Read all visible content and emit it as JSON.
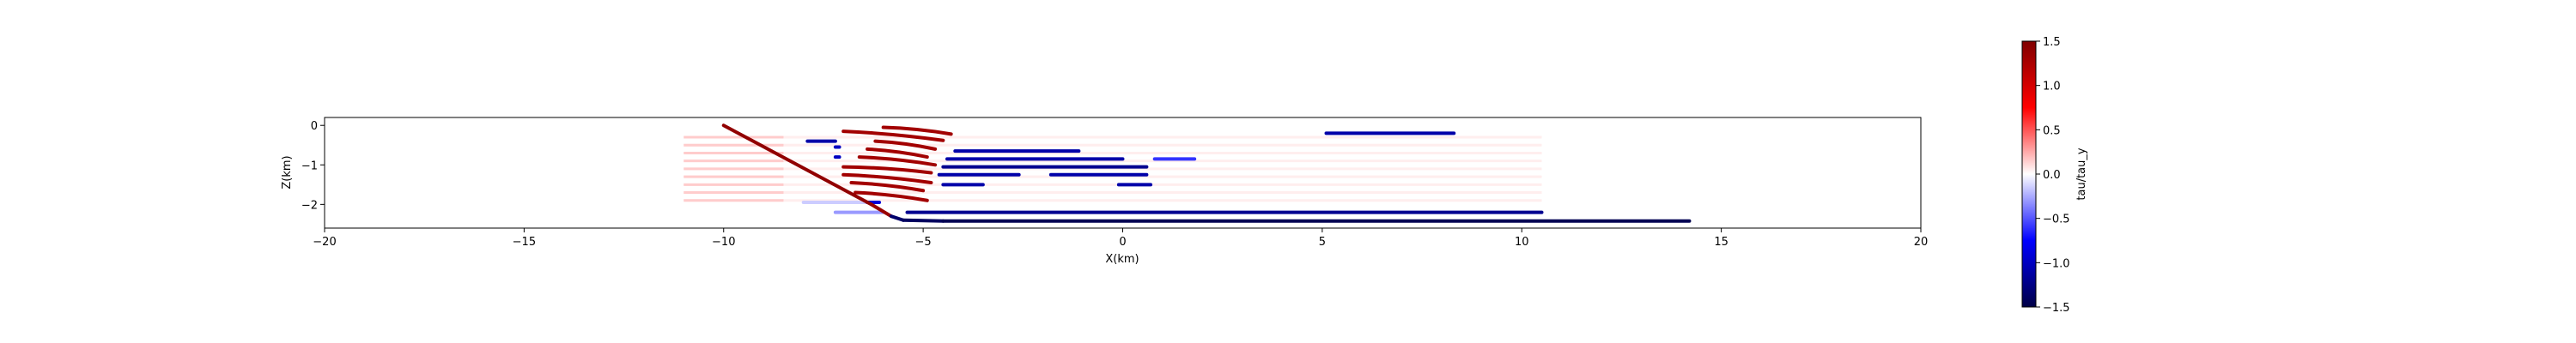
{
  "chart_data": {
    "type": "line",
    "title": "",
    "xlabel": "X(km)",
    "ylabel": "Z(km)",
    "xlim": [
      -20,
      20
    ],
    "ylim": [
      -2.6,
      0.2
    ],
    "x_ticks": [
      -20,
      -15,
      -10,
      -5,
      0,
      5,
      10,
      15,
      20
    ],
    "y_ticks": [
      0,
      -1,
      -2
    ],
    "grid": false,
    "colorbar": {
      "label": "tau/tau_y",
      "range": [
        -1.5,
        1.5
      ],
      "ticks": [
        1.5,
        1.0,
        0.5,
        0.0,
        -0.5,
        -1.0,
        -1.5
      ],
      "colormap": "seismic",
      "colors": [
        "#000046",
        "#0000ff",
        "#ffffff",
        "#ff0000",
        "#800000"
      ]
    },
    "main_fault": {
      "points": [
        [
          -10.0,
          0.0
        ],
        [
          -6.3,
          -2.0
        ],
        [
          -5.8,
          -2.3
        ],
        [
          -5.5,
          -2.4
        ],
        [
          -4.5,
          -2.42
        ],
        [
          14.2,
          -2.42
        ]
      ],
      "values": [
        1.4,
        1.35,
        -1.35,
        -1.4,
        -1.45,
        -1.5
      ]
    },
    "segments": [
      {
        "x1": 5.1,
        "y1": -0.2,
        "x2": 8.3,
        "y2": -0.2,
        "v": -1.1
      },
      {
        "x1": -7.9,
        "y1": -0.4,
        "x2": -7.2,
        "y2": -0.4,
        "v": -1.1
      },
      {
        "x1": -7.2,
        "y1": -0.55,
        "x2": -7.1,
        "y2": -0.55,
        "v": -1.0
      },
      {
        "x1": -7.2,
        "y1": -0.8,
        "x2": -7.1,
        "y2": -0.8,
        "v": -1.0
      },
      {
        "x1": -4.2,
        "y1": -0.65,
        "x2": -1.1,
        "y2": -0.65,
        "v": -1.1
      },
      {
        "x1": -4.4,
        "y1": -0.85,
        "x2": 0.0,
        "y2": -0.85,
        "v": -1.1
      },
      {
        "x1": -4.5,
        "y1": -1.05,
        "x2": 0.6,
        "y2": -1.05,
        "v": -1.2
      },
      {
        "x1": -4.6,
        "y1": -1.25,
        "x2": -2.6,
        "y2": -1.25,
        "v": -1.1
      },
      {
        "x1": -1.8,
        "y1": -1.25,
        "x2": 0.6,
        "y2": -1.25,
        "v": -1.1
      },
      {
        "x1": -4.5,
        "y1": -1.5,
        "x2": -3.5,
        "y2": -1.5,
        "v": -1.1
      },
      {
        "x1": -0.1,
        "y1": -1.5,
        "x2": 0.7,
        "y2": -1.5,
        "v": -1.1
      },
      {
        "x1": 0.8,
        "y1": -0.85,
        "x2": 1.8,
        "y2": -0.85,
        "v": -0.6
      },
      {
        "x1": -5.4,
        "y1": -2.2,
        "x2": 10.5,
        "y2": -2.2,
        "v": -1.2
      },
      {
        "x1": -7.2,
        "y1": -2.2,
        "x2": -6.0,
        "y2": -2.2,
        "v": -0.3
      },
      {
        "x1": -8.0,
        "y1": -1.95,
        "x2": -6.2,
        "y2": -1.95,
        "v": -0.15
      },
      {
        "x1": -6.4,
        "y1": -1.95,
        "x2": -6.1,
        "y2": -1.95,
        "v": -0.9
      }
    ],
    "faint_lines": [
      {
        "x1": -11.0,
        "x2": 10.5,
        "ys": [
          -0.3,
          -0.5,
          -0.7,
          -0.9,
          -1.1,
          -1.3,
          -1.5,
          -1.7,
          -1.9
        ],
        "v": 0.05
      },
      {
        "x1": -11.0,
        "x2": -8.5,
        "ys": [
          -0.3,
          -0.5,
          -0.7,
          -0.9,
          -1.1,
          -1.3,
          -1.5,
          -1.7,
          -1.9
        ],
        "v": 0.15
      }
    ],
    "splays": [
      {
        "x1": -6.0,
        "y1": -0.05,
        "x2": -4.3,
        "y2": -0.22,
        "v": 1.3
      },
      {
        "x1": -7.0,
        "y1": -0.15,
        "x2": -4.5,
        "y2": -0.38,
        "v": 1.3
      },
      {
        "x1": -6.2,
        "y1": -0.4,
        "x2": -4.7,
        "y2": -0.6,
        "v": 1.3
      },
      {
        "x1": -6.4,
        "y1": -0.6,
        "x2": -4.9,
        "y2": -0.8,
        "v": 1.3
      },
      {
        "x1": -6.6,
        "y1": -0.8,
        "x2": -4.7,
        "y2": -1.0,
        "v": 1.3
      },
      {
        "x1": -7.0,
        "y1": -1.05,
        "x2": -4.8,
        "y2": -1.2,
        "v": 1.3
      },
      {
        "x1": -7.0,
        "y1": -1.25,
        "x2": -4.8,
        "y2": -1.45,
        "v": 1.3
      },
      {
        "x1": -6.8,
        "y1": -1.45,
        "x2": -5.0,
        "y2": -1.65,
        "v": 1.3
      },
      {
        "x1": -6.7,
        "y1": -1.7,
        "x2": -4.9,
        "y2": -1.9,
        "v": 1.3
      }
    ]
  }
}
